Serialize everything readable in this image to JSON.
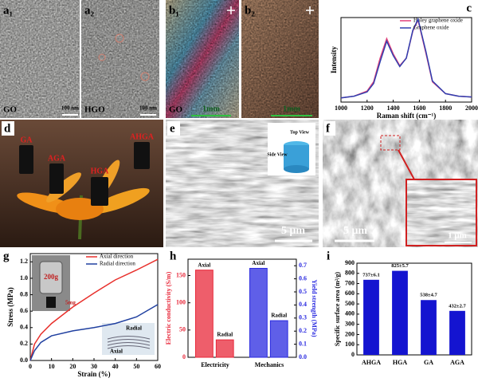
{
  "panels": {
    "a1": {
      "label": "a₁",
      "sample": "GO",
      "scale": "100 nm"
    },
    "a2": {
      "label": "a₂",
      "sample": "HGO",
      "scale": "100 nm"
    },
    "b1": {
      "label": "b₁",
      "sample": "GO",
      "scale": "1mm"
    },
    "b2": {
      "label": "b₂",
      "scale": "1mm"
    },
    "c": {
      "label": "c"
    },
    "d": {
      "label": "d",
      "samples": [
        "GA",
        "AGA",
        "HGA",
        "AHGA"
      ]
    },
    "e": {
      "label": "e",
      "scale": "5 μm",
      "inset": [
        "Top View",
        "Side View"
      ]
    },
    "f": {
      "label": "f",
      "scale": "5 μm",
      "inset_scale": "1 μm"
    },
    "g": {
      "label": "g",
      "inset": [
        "200g",
        "5mg",
        "Radial",
        "Axial"
      ]
    },
    "h": {
      "label": "h"
    },
    "i": {
      "label": "i"
    }
  },
  "chart_data": [
    {
      "type": "line",
      "xlabel": "Raman shift (cm⁻¹)",
      "ylabel": "Intensity",
      "x": [
        1000,
        1100,
        1200,
        1250,
        1300,
        1350,
        1400,
        1450,
        1500,
        1550,
        1590,
        1650,
        1700,
        1800,
        1900,
        2000
      ],
      "xlim": [
        1000,
        2000
      ],
      "xticks": [
        1000,
        1200,
        1400,
        1600,
        1800,
        2000
      ],
      "ylim": [
        0,
        1
      ],
      "legend": "upper right",
      "series": [
        {
          "name": "Holey graphene oxide",
          "color": "#e0407a",
          "values": [
            0.05,
            0.07,
            0.13,
            0.24,
            0.52,
            0.75,
            0.57,
            0.43,
            0.52,
            0.84,
            0.97,
            0.58,
            0.24,
            0.1,
            0.07,
            0.06
          ]
        },
        {
          "name": "Graphene oxide",
          "color": "#3040b0",
          "values": [
            0.05,
            0.07,
            0.12,
            0.22,
            0.48,
            0.72,
            0.55,
            0.42,
            0.52,
            0.85,
            0.98,
            0.6,
            0.25,
            0.1,
            0.07,
            0.06
          ]
        }
      ]
    },
    {
      "type": "line",
      "xlabel": "Strain (%)",
      "ylabel": "Stress (MPa)",
      "x": [
        0,
        2,
        5,
        10,
        20,
        30,
        40,
        50,
        60
      ],
      "xlim": [
        0,
        60
      ],
      "xticks": [
        0,
        10,
        20,
        30,
        40,
        50,
        60
      ],
      "ylim": [
        0,
        1.3
      ],
      "yticks": [
        {
          "value": 0,
          "label": "0.0"
        },
        0.2,
        0.4,
        0.6,
        0.8,
        {
          "value": 1,
          "label": "1.0"
        },
        1.2
      ],
      "legend": "upper right",
      "series": [
        {
          "name": "Axial direction",
          "color": "#e8302c",
          "values": [
            0,
            0.2,
            0.32,
            0.45,
            0.65,
            0.82,
            0.98,
            1.1,
            1.23
          ]
        },
        {
          "name": "Radial direction",
          "color": "#2040a0",
          "values": [
            0,
            0.12,
            0.22,
            0.3,
            0.36,
            0.4,
            0.45,
            0.53,
            0.68
          ]
        }
      ]
    },
    {
      "type": "bar",
      "ylabel": "Electric conductivity (S/m)",
      "y2label": "Yield strength (MPa)",
      "categories": [
        "Electricity",
        "Mechanics"
      ],
      "ylim": [
        0,
        180
      ],
      "yticks": [
        0,
        50,
        100,
        150
      ],
      "y2lim": [
        0,
        0.75
      ],
      "y2ticks": [
        {
          "value": 0,
          "label": "0.0"
        },
        0.1,
        0.2,
        0.3,
        0.4,
        0.5,
        0.6,
        0.7
      ],
      "groups": [
        {
          "axis": "y",
          "color": "#e8283a",
          "bar_labels": [
            "Axial",
            "Radial"
          ],
          "values": [
            160,
            32
          ]
        },
        {
          "axis": "y2",
          "color": "#2a2ae0",
          "bar_labels": [
            "Axial",
            "Radial"
          ],
          "values": [
            0.68,
            0.28
          ]
        }
      ]
    },
    {
      "type": "bar",
      "ylabel": "Specific surface area (m²/g)",
      "categories": [
        "AHGA",
        "HGA",
        "GA",
        "AGA"
      ],
      "values": [
        737,
        825,
        538,
        432
      ],
      "value_labels": [
        "737±6.1",
        "825±5.7",
        "538±4.7",
        "432±2.7"
      ],
      "color": "#1414d0",
      "ylim": [
        0,
        900
      ],
      "yticks": [
        0,
        100,
        200,
        300,
        400,
        500,
        600,
        700,
        800,
        900
      ]
    }
  ]
}
